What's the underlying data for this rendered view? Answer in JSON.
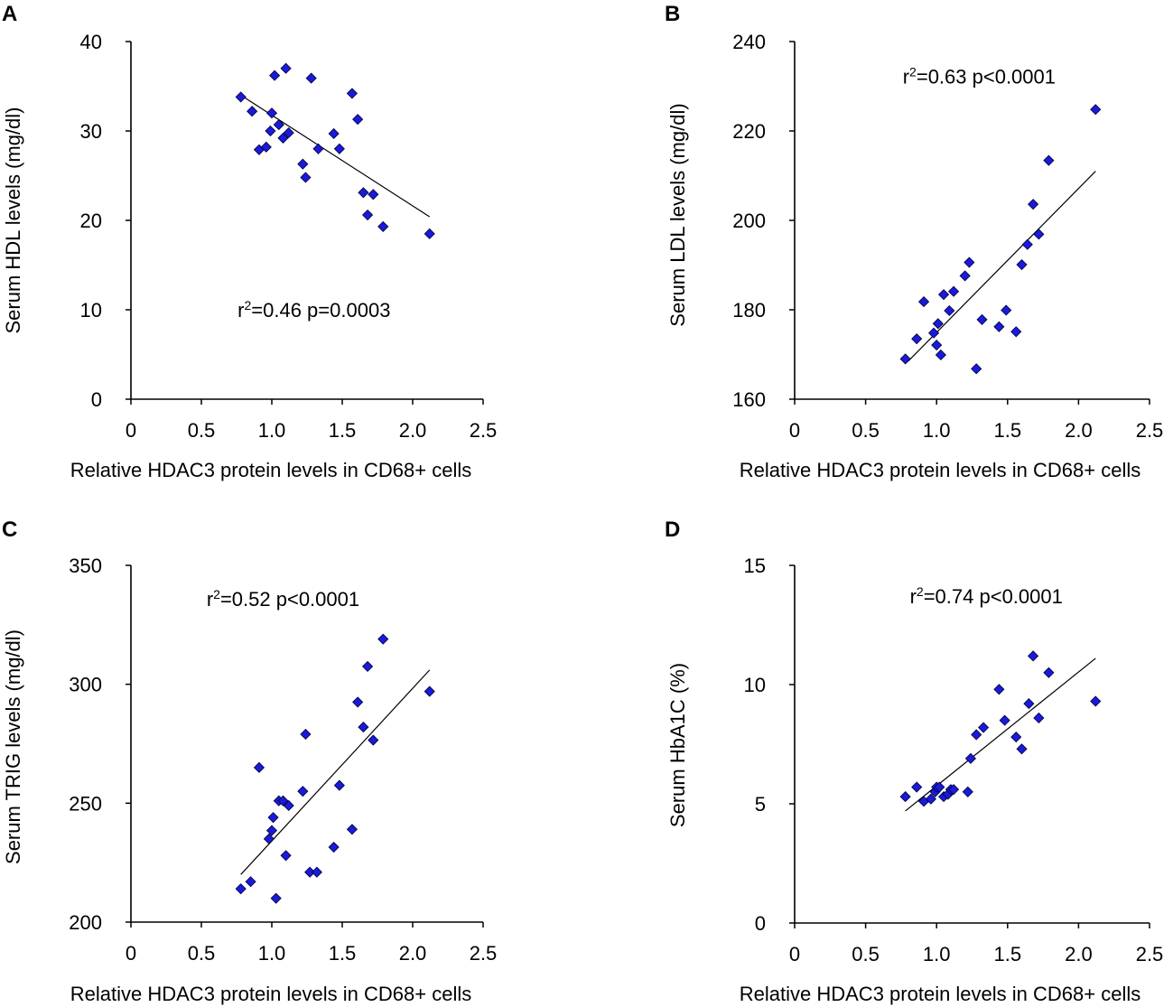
{
  "chart_data": [
    {
      "id": "A",
      "type": "scatter",
      "panel_label": "A",
      "xlabel": "Relative HDAC3 protein levels in CD68+ cells",
      "ylabel": "Serum HDL levels (mg/dl)",
      "xlim": [
        0,
        2.5
      ],
      "ylim": [
        0,
        40
      ],
      "xticks": [
        0,
        0.5,
        1.0,
        1.5,
        2.0,
        2.5
      ],
      "xtick_labels": [
        "0",
        "0.5",
        "1.0",
        "1.5",
        "2.0",
        "2.5"
      ],
      "yticks": [
        0,
        10,
        20,
        30,
        40
      ],
      "ytick_labels": [
        "0",
        "10",
        "20",
        "30",
        "40"
      ],
      "annotation": {
        "r2_prefix": "r",
        "r2_sup": "2",
        "text": "=0.46 p=0.0003",
        "at": [
          1.3,
          9.2
        ]
      },
      "trendline": [
        [
          0.78,
          34.0
        ],
        [
          2.12,
          20.4
        ]
      ],
      "marker_color": "#1a1adb",
      "x": [
        0.78,
        0.86,
        0.91,
        0.96,
        0.99,
        1.0,
        1.02,
        1.05,
        1.08,
        1.1,
        1.12,
        1.22,
        1.24,
        1.28,
        1.33,
        1.44,
        1.48,
        1.57,
        1.61,
        1.65,
        1.68,
        1.72,
        1.79,
        2.12
      ],
      "y": [
        33.8,
        32.2,
        27.9,
        28.2,
        30.0,
        32.0,
        36.2,
        30.7,
        29.2,
        37.0,
        29.8,
        26.3,
        24.8,
        35.9,
        28.0,
        29.7,
        28.0,
        34.2,
        31.3,
        23.1,
        20.6,
        22.9,
        19.3,
        18.5
      ]
    },
    {
      "id": "B",
      "type": "scatter",
      "panel_label": "B",
      "xlabel": "Relative HDAC3 protein levels in CD68+ cells",
      "ylabel": "Serum LDL levels (mg/dl)",
      "xlim": [
        0,
        2.5
      ],
      "ylim": [
        160,
        240
      ],
      "xticks": [
        0,
        0.5,
        1.0,
        1.5,
        2.0,
        2.5
      ],
      "xtick_labels": [
        "0",
        "0.5",
        "1.0",
        "1.5",
        "2.0",
        "2.5"
      ],
      "yticks": [
        160,
        180,
        200,
        220,
        240
      ],
      "ytick_labels": [
        "160",
        "180",
        "200",
        "220",
        "240"
      ],
      "annotation": {
        "r2_prefix": "r",
        "r2_sup": "2",
        "text": "=0.63 p<0.0001",
        "at": [
          1.3,
          230.6
        ]
      },
      "trendline": [
        [
          0.8,
          168.5
        ],
        [
          2.12,
          211.0
        ]
      ],
      "marker_color": "#1a1adb",
      "x": [
        0.78,
        0.86,
        0.91,
        0.98,
        1.0,
        1.01,
        1.03,
        1.05,
        1.09,
        1.12,
        1.2,
        1.23,
        1.28,
        1.32,
        1.44,
        1.49,
        1.56,
        1.6,
        1.64,
        1.68,
        1.72,
        1.79,
        2.12
      ],
      "y": [
        169.0,
        173.5,
        181.8,
        174.8,
        172.1,
        176.9,
        169.9,
        183.4,
        179.8,
        184.1,
        187.6,
        190.6,
        166.8,
        177.8,
        176.2,
        179.9,
        175.1,
        190.1,
        194.6,
        203.6,
        196.9,
        213.4,
        224.8
      ]
    },
    {
      "id": "C",
      "type": "scatter",
      "panel_label": "C",
      "xlabel": "Relative HDAC3 protein levels in CD68+ cells",
      "ylabel": "Serum TRIG levels (mg/dl)",
      "xlim": [
        0,
        2.5
      ],
      "ylim": [
        200,
        350
      ],
      "xticks": [
        0,
        0.5,
        1.0,
        1.5,
        2.0,
        2.5
      ],
      "xtick_labels": [
        "0",
        "0.5",
        "1.0",
        "1.5",
        "2.0",
        "2.5"
      ],
      "yticks": [
        200,
        250,
        300,
        350
      ],
      "ytick_labels": [
        "200",
        "250",
        "300",
        "350"
      ],
      "annotation": {
        "r2_prefix": "r",
        "r2_sup": "2",
        "text": "=0.52 p<0.0001",
        "at": [
          1.08,
          333.0
        ]
      },
      "trendline": [
        [
          0.78,
          220.0
        ],
        [
          2.12,
          306.0
        ]
      ],
      "marker_color": "#1a1adb",
      "x": [
        0.78,
        0.85,
        0.91,
        0.98,
        1.0,
        1.01,
        1.03,
        1.05,
        1.08,
        1.1,
        1.12,
        1.22,
        1.24,
        1.27,
        1.32,
        1.44,
        1.48,
        1.57,
        1.61,
        1.65,
        1.68,
        1.72,
        1.79,
        2.12
      ],
      "y": [
        214.0,
        217.0,
        265.0,
        235.0,
        238.5,
        244.0,
        210.0,
        251.0,
        251.0,
        228.0,
        249.0,
        255.0,
        279.0,
        221.0,
        221.0,
        231.5,
        257.5,
        239.0,
        292.5,
        282.0,
        307.5,
        276.5,
        319.0,
        297.0
      ]
    },
    {
      "id": "D",
      "type": "scatter",
      "panel_label": "D",
      "xlabel": "Relative HDAC3 protein levels in CD68+ cells",
      "ylabel": "Serum HbA1C (%)",
      "xlim": [
        0,
        2.5
      ],
      "ylim": [
        0,
        15
      ],
      "xticks": [
        0,
        0.5,
        1.0,
        1.5,
        2.0,
        2.5
      ],
      "xtick_labels": [
        "0",
        "0.5",
        "1.0",
        "1.5",
        "2.0",
        "2.5"
      ],
      "yticks": [
        0,
        5,
        10,
        15
      ],
      "ytick_labels": [
        "0",
        "5",
        "10",
        "15"
      ],
      "annotation": {
        "r2_prefix": "r",
        "r2_sup": "2",
        "text": "=0.74 p<0.0001",
        "at": [
          1.35,
          13.4
        ]
      },
      "trendline": [
        [
          0.78,
          4.7
        ],
        [
          2.12,
          11.1
        ]
      ],
      "marker_color": "#1a1adb",
      "x": [
        0.78,
        0.86,
        0.91,
        0.96,
        0.99,
        1.0,
        1.02,
        1.05,
        1.08,
        1.1,
        1.12,
        1.22,
        1.24,
        1.28,
        1.33,
        1.44,
        1.48,
        1.56,
        1.6,
        1.65,
        1.68,
        1.72,
        1.79,
        2.12
      ],
      "y": [
        5.3,
        5.7,
        5.1,
        5.2,
        5.5,
        5.7,
        5.7,
        5.3,
        5.4,
        5.6,
        5.6,
        5.5,
        6.9,
        7.9,
        8.2,
        9.8,
        8.5,
        7.8,
        7.3,
        9.2,
        11.2,
        8.6,
        10.5,
        9.3
      ]
    }
  ]
}
